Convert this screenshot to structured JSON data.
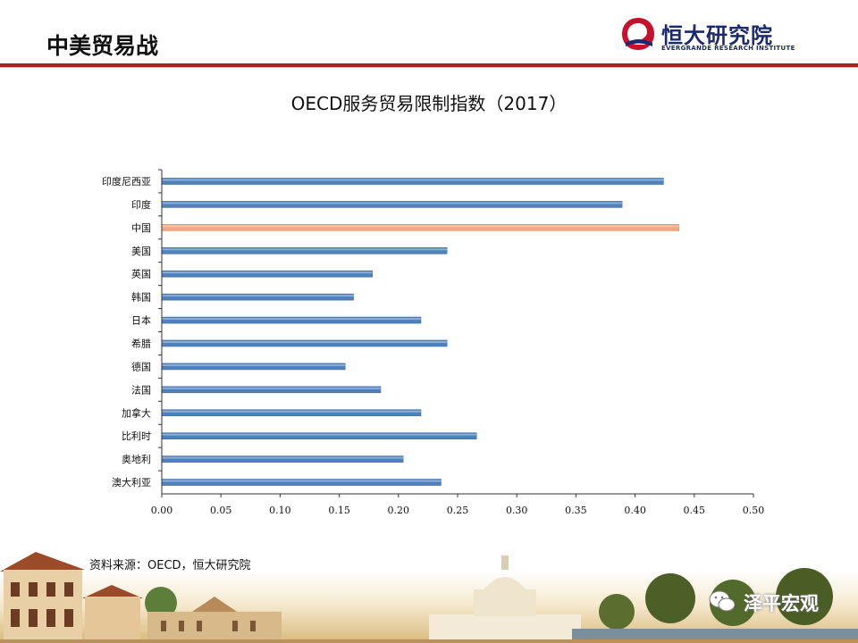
{
  "header": {
    "title": "中美贸易战",
    "logo_cn": "恒大研究院",
    "logo_en": "EVERGRANDE RESEARCH INSTITUTE"
  },
  "chart_data": {
    "type": "bar",
    "orientation": "horizontal",
    "title": "OECD服务贸易限制指数（2017）",
    "categories": [
      "印度尼西亚",
      "印度",
      "中国",
      "美国",
      "英国",
      "韩国",
      "日本",
      "希腊",
      "德国",
      "法国",
      "加拿大",
      "比利时",
      "奥地利",
      "澳大利亚"
    ],
    "values": [
      0.424,
      0.389,
      0.437,
      0.241,
      0.178,
      0.162,
      0.219,
      0.241,
      0.155,
      0.185,
      0.219,
      0.266,
      0.204,
      0.236
    ],
    "highlight_category": "中国",
    "xlim": [
      0,
      0.5
    ],
    "xticks": [
      "0.00",
      "0.05",
      "0.10",
      "0.15",
      "0.20",
      "0.25",
      "0.30",
      "0.35",
      "0.40",
      "0.45",
      "0.50"
    ],
    "grid": false,
    "colors": {
      "bar": "#4f81bd",
      "highlight": "#f4a582"
    }
  },
  "source": "资料来源：OECD，恒大研究院",
  "watermark": {
    "text": "泽平宏观",
    "icon": "wechat-icon"
  },
  "colors": {
    "accent": "#a0261e",
    "brand_blue": "#1a2a6c",
    "brand_red": "#c8102e"
  }
}
